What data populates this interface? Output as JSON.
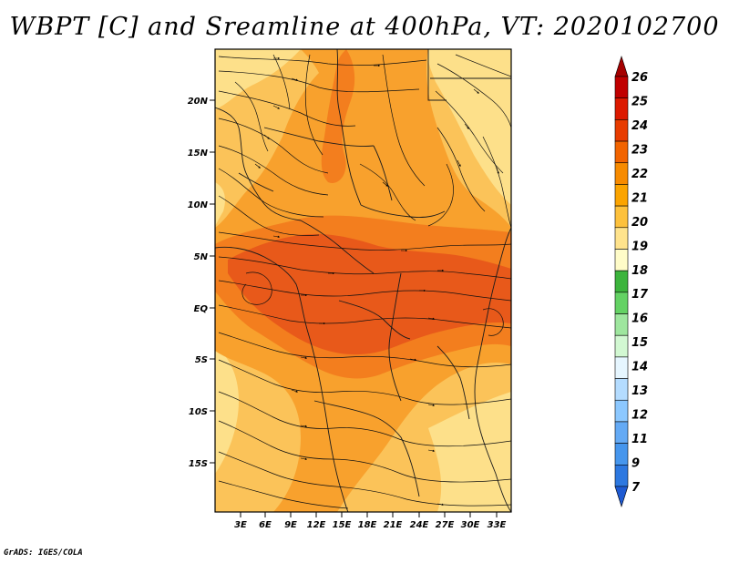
{
  "title": "WBPT [C] and Sreamline at 400hPa, VT: 2020102700",
  "footer": "GrADS: IGES/COLA",
  "map": {
    "lat_labels": [
      "20N",
      "15N",
      "10N",
      "5N",
      "EQ",
      "5S",
      "10S",
      "15S"
    ],
    "lon_labels": [
      "3E",
      "6E",
      "9E",
      "12E",
      "15E",
      "18E",
      "21E",
      "24E",
      "27E",
      "30E",
      "33E"
    ]
  },
  "colorbar": {
    "levels": [
      "26",
      "25",
      "24",
      "23",
      "22",
      "21",
      "20",
      "19",
      "18",
      "17",
      "16",
      "15",
      "14",
      "13",
      "12",
      "11",
      "9",
      "7"
    ],
    "colors": [
      "#a50000",
      "#c00000",
      "#dc1a00",
      "#e83c00",
      "#f26400",
      "#f78b00",
      "#fba400",
      "#fdc13c",
      "#ffe38c",
      "#fffcc8",
      "#3cb43c",
      "#64d264",
      "#9ee69e",
      "#d2f8d2",
      "#e6f6ff",
      "#b4dcff",
      "#8cc8ff",
      "#64aaf5",
      "#4696ed",
      "#2d78e0",
      "#1e5ad2"
    ]
  },
  "palette": {
    "band_19_20": "#fde08a",
    "band_20_21": "#fbc359",
    "band_21_22": "#f8a12d",
    "band_22_23": "#f37e1e",
    "band_23_24": "#e8591a"
  }
}
